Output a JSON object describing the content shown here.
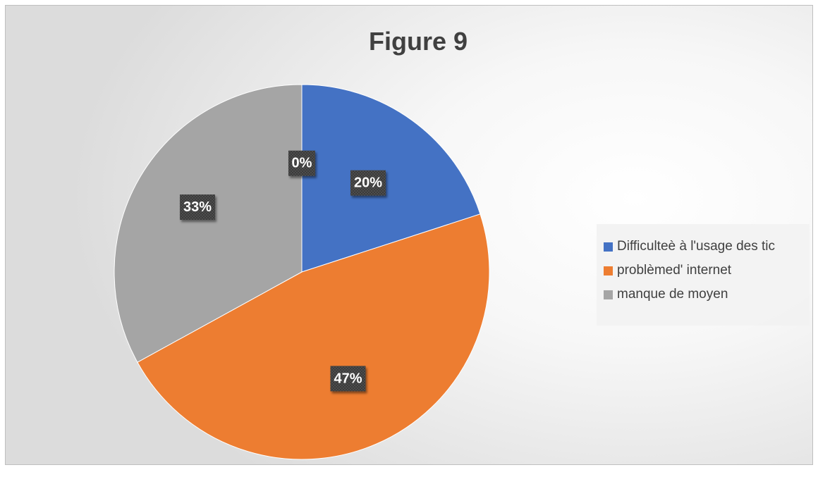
{
  "chart_data": {
    "type": "pie",
    "title": "Figure 9",
    "categories": [
      "Difficulteè à l'usage des tic",
      "problèmed' internet",
      "manque de moyen",
      ""
    ],
    "values": [
      20,
      47,
      33,
      0
    ],
    "data_labels": [
      "20%",
      "47%",
      "33%",
      "0%"
    ],
    "colors": [
      "#4472c4",
      "#ed7d31",
      "#a5a5a5",
      "#ffc000"
    ],
    "legend_position": "right"
  },
  "legend": {
    "items": [
      {
        "label": "Difficulteè à l'usage des tic",
        "color": "#4472c4"
      },
      {
        "label": "problèmed' internet",
        "color": "#ed7d31"
      },
      {
        "label": "manque de moyen",
        "color": "#a5a5a5"
      }
    ]
  }
}
